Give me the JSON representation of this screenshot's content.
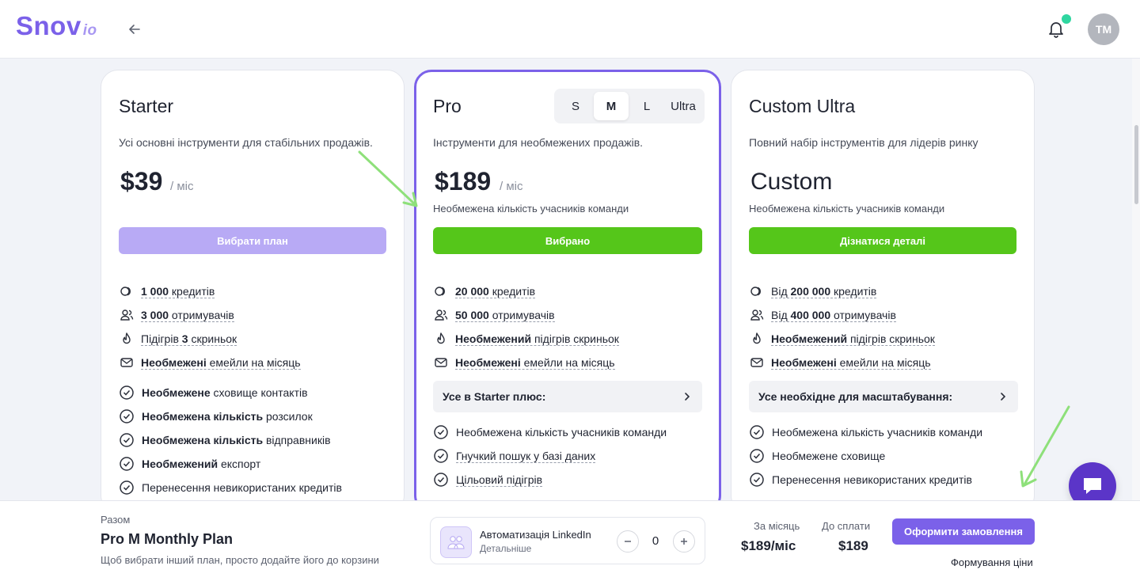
{
  "header": {
    "logo_main": "Snov",
    "logo_suffix": "io",
    "avatar_initials": "TM",
    "notification_color": "#2fd6a0"
  },
  "plans": {
    "starter": {
      "title": "Starter",
      "description": "Усі основні інструменти для стабільних продажів.",
      "price": "$39",
      "period": "/ міс",
      "button": "Вибрати план",
      "features": [
        {
          "bold": "1 000",
          "text": " кредитів"
        },
        {
          "bold": "3 000",
          "text": " отримувачів"
        },
        {
          "pre": "Підігрів ",
          "bold": "3",
          "text": " скриньок"
        },
        {
          "bold": "Необмежені",
          "text": " емейли на місяць"
        }
      ],
      "checks": [
        {
          "bold": "Необмежене",
          "text": " сховище контактів"
        },
        {
          "bold": "Необмежена кількість",
          "text": " розсилок"
        },
        {
          "bold": "Необмежена кількість",
          "text": " відправників"
        },
        {
          "bold": "Необмежений",
          "text": " експорт"
        },
        {
          "bold": "",
          "text": "Перенесення невикористаних кредитів"
        }
      ]
    },
    "pro": {
      "title": "Pro",
      "sizes": [
        "S",
        "M",
        "L",
        "Ultra"
      ],
      "selected_size": "M",
      "description": "Інструменти для необмежених продажів.",
      "price": "$189",
      "period": "/ міс",
      "team_note": "Необмежена кількість учасників команди",
      "button": "Вибрано",
      "features": [
        {
          "bold": "20 000",
          "text": " кредитів"
        },
        {
          "bold": "50 000",
          "text": " отримувачів"
        },
        {
          "bold": "Необмежений",
          "text": " підігрів скриньок"
        },
        {
          "bold": "Необмежені",
          "text": " емейли на місяць"
        }
      ],
      "plus_label": "Усе в Starter плюс:",
      "checks": [
        {
          "text": "Необмежена кількість учасників команди",
          "dashed": false
        },
        {
          "text": "Гнучкий пошук у базі даних",
          "dashed": true
        },
        {
          "text": "Цільовий підігрів",
          "dashed": true
        }
      ]
    },
    "custom": {
      "title": "Custom Ultra",
      "description": "Повний набір інструментів для лідерів ринку",
      "price": "Custom",
      "team_note": "Необмежена кількість учасників команди",
      "button": "Дізнатися деталі",
      "features": [
        {
          "pre": "Від ",
          "bold": "200 000",
          "text": " кредитів"
        },
        {
          "pre": "Від ",
          "bold": "400 000",
          "text": " отримувачів"
        },
        {
          "bold": "Необмежений",
          "text": " підігрів скриньок"
        },
        {
          "bold": "Необмежені",
          "text": " емейли на місяць"
        }
      ],
      "plus_label": "Усе необхідне для масштабування:",
      "checks": [
        {
          "text": "Необмежена кількість учасників команди"
        },
        {
          "text": "Необмежене сховище"
        },
        {
          "text": "Перенесення невикористаних кредитів"
        }
      ]
    }
  },
  "bottom_bar": {
    "total_label": "Разом",
    "plan_name": "Pro M Monthly Plan",
    "hint": "Щоб вибрати інший план, просто додайте його до корзини",
    "addon_title": "Автоматизація LinkedIn",
    "addon_link": "Детальніше",
    "addon_qty": "0",
    "monthly_label": "За місяць",
    "monthly_value": "$189/міс",
    "due_label": "До сплати",
    "due_value": "$189",
    "order_button": "Оформити замовлення",
    "pricing_link": "Формування ціни"
  },
  "colors": {
    "brand": "#7b61e9",
    "green": "#55c61a",
    "annotation_arrow": "#8ee07a"
  }
}
